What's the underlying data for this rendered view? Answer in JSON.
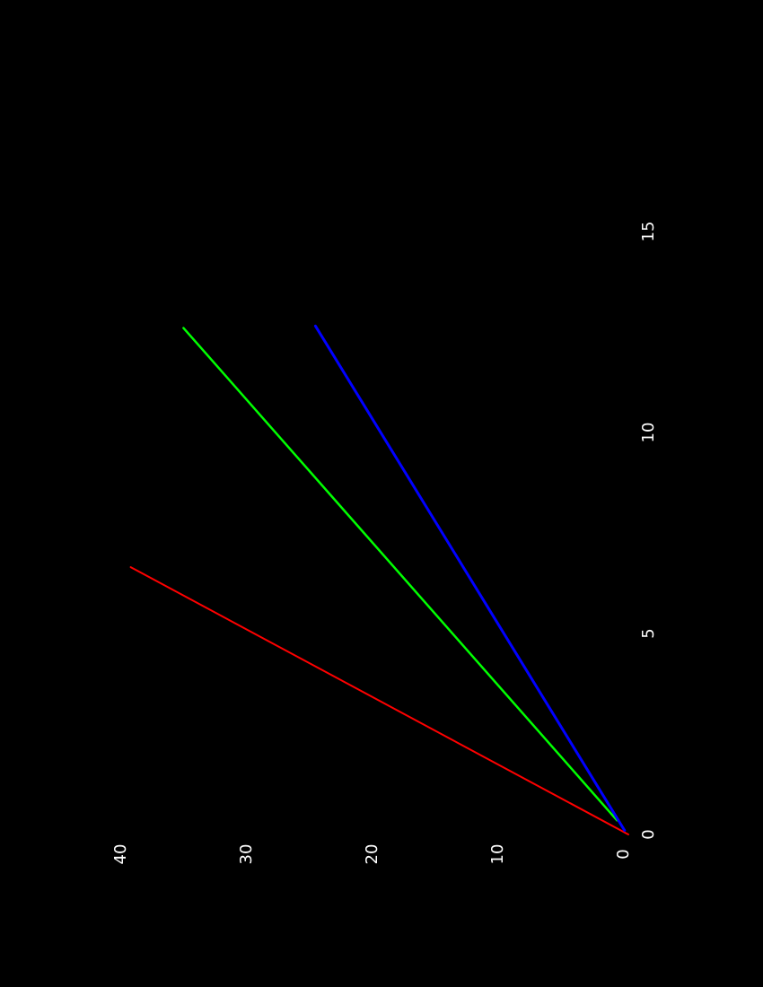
{
  "page": {
    "background": "#000000",
    "text_color": "#ffffff"
  },
  "chart_data": {
    "type": "line",
    "title": "",
    "xlabel": "",
    "ylabel": "",
    "orientation": "rotated_90_ccw",
    "grid": false,
    "legend": false,
    "x_ticks": [
      "0",
      "5",
      "10",
      "15"
    ],
    "y_ticks": [
      "0",
      "10",
      "20",
      "30",
      "40"
    ],
    "xlim": [
      0,
      16.3
    ],
    "ylim": [
      0,
      44
    ],
    "series": [
      {
        "name": "red",
        "color": "#ff0000",
        "width": 2,
        "points": [
          [
            0,
            0
          ],
          [
            6.65,
            39.6
          ]
        ]
      },
      {
        "name": "green",
        "color": "#00ff00",
        "width": 2.5,
        "points": [
          [
            0.35,
            0.9
          ],
          [
            12.6,
            35.4
          ]
        ]
      },
      {
        "name": "blue",
        "color": "#0000ff",
        "width": 3,
        "points": [
          [
            0.1,
            0.3
          ],
          [
            12.65,
            24.9
          ]
        ]
      }
    ]
  }
}
